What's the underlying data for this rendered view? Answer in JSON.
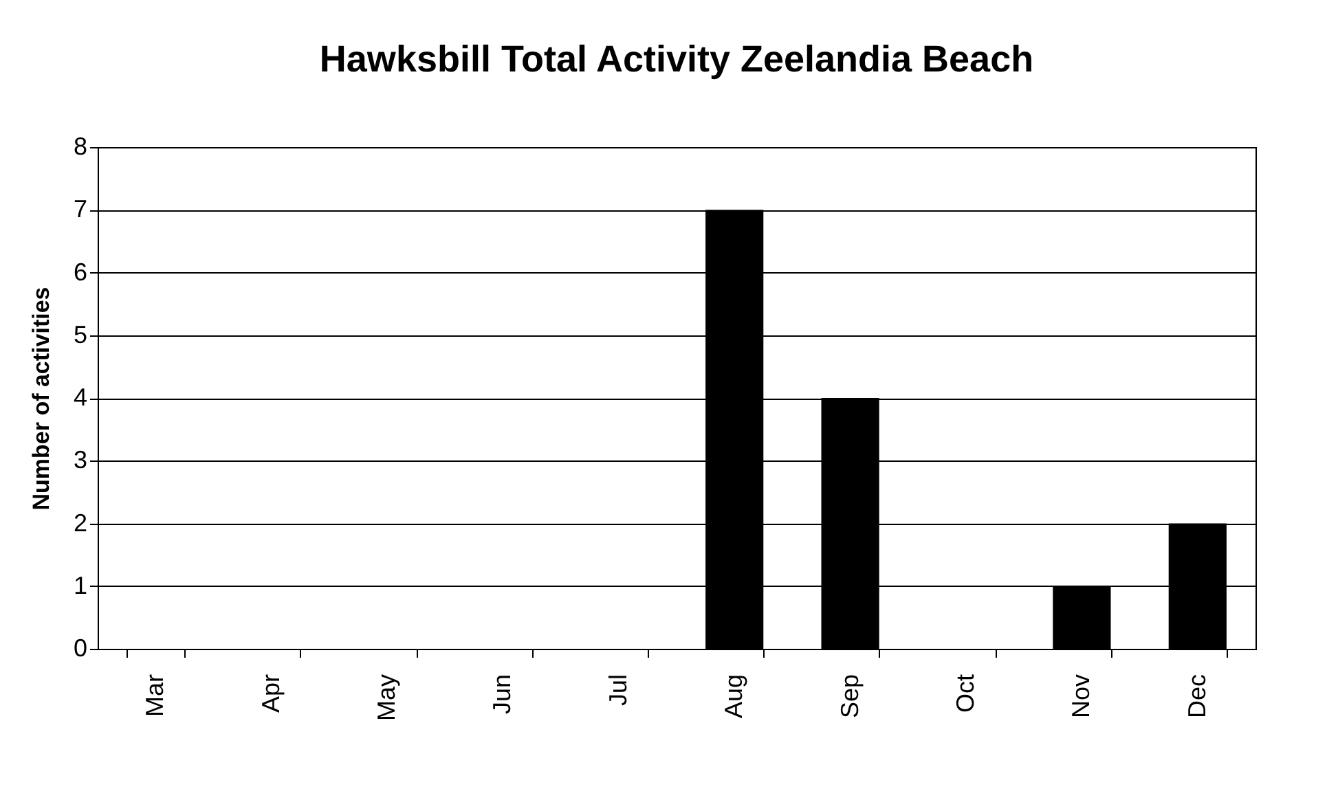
{
  "chart_data": {
    "type": "bar",
    "title": "Hawksbill Total Activity Zeelandia Beach",
    "ylabel": "Number of activities",
    "categories": [
      "Mar",
      "Apr",
      "May",
      "Jun",
      "Jul",
      "Aug",
      "Sep",
      "Oct",
      "Nov",
      "Dec"
    ],
    "values": [
      0,
      0,
      0,
      0,
      0,
      7,
      4,
      0,
      1,
      2
    ],
    "color": "#000000",
    "ylim": [
      0,
      8
    ],
    "yticks": [
      0,
      1,
      2,
      3,
      4,
      5,
      6,
      7,
      8
    ],
    "grid": "y"
  }
}
